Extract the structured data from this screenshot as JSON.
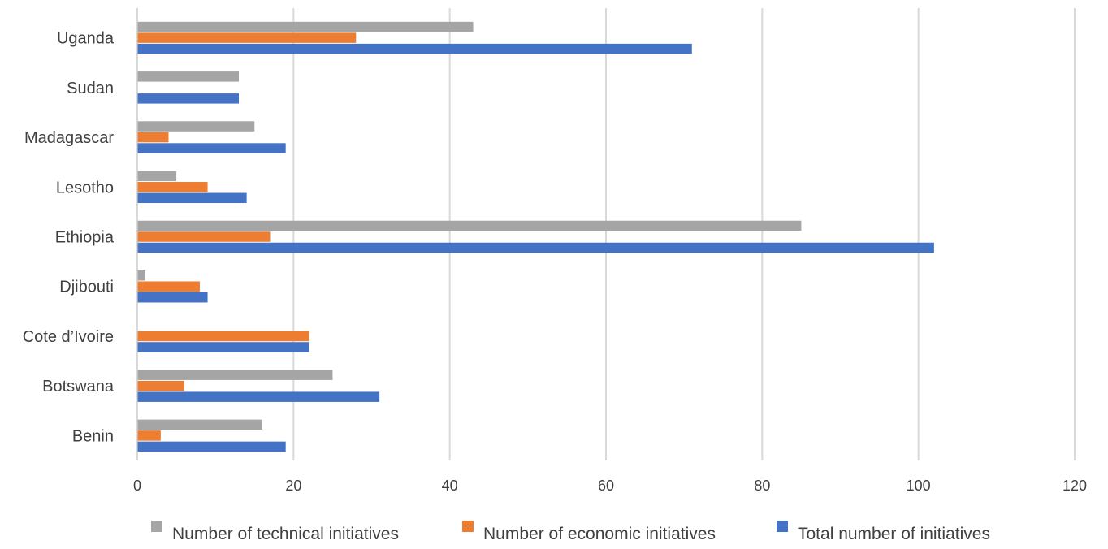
{
  "chart_data": {
    "type": "bar",
    "orientation": "horizontal",
    "categories": [
      "Benin",
      "Botswana",
      "Cote d’Ivoire",
      "Djibouti",
      "Ethiopia",
      "Lesotho",
      "Madagascar",
      "Sudan",
      "Uganda"
    ],
    "series": [
      {
        "name": "Number of technical initiatives",
        "color": "#a5a5a5",
        "values": [
          16,
          25,
          0,
          1,
          85,
          5,
          15,
          13,
          43
        ]
      },
      {
        "name": "Number of economic initiatives",
        "color": "#ed7d31",
        "values": [
          3,
          6,
          22,
          8,
          17,
          9,
          4,
          0,
          28
        ]
      },
      {
        "name": "Total number of initiatives",
        "color": "#4472c4",
        "values": [
          19,
          31,
          22,
          9,
          102,
          14,
          19,
          13,
          71
        ]
      }
    ],
    "xlim": [
      0,
      120
    ],
    "xticks": [
      0,
      20,
      40,
      60,
      80,
      100,
      120
    ],
    "title": "",
    "xlabel": "",
    "ylabel": "",
    "grid": "vertical",
    "legend_position": "bottom"
  }
}
